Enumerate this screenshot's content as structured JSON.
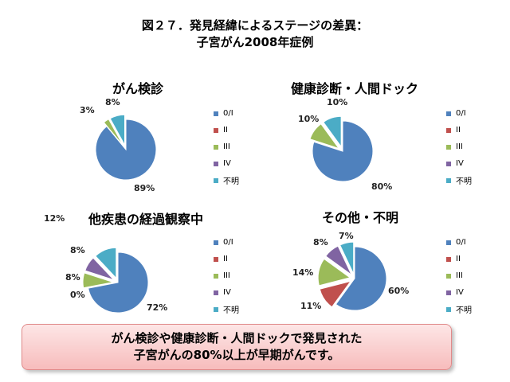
{
  "title": {
    "line1": "図２７．発見経緯によるステージの差異：",
    "line2": "子宮がん2008年症例"
  },
  "legend_labels": [
    "0/I",
    "II",
    "III",
    "IV",
    "不明"
  ],
  "colors": [
    "#4F81BD",
    "#C0504D",
    "#9BBB59",
    "#8064A2",
    "#4BACC6"
  ],
  "chart_data": [
    {
      "type": "pie",
      "title": "がん検診",
      "categories": [
        "0/I",
        "II",
        "III",
        "IV",
        "不明"
      ],
      "values": [
        89,
        0,
        3,
        0,
        8
      ],
      "value_labels": [
        "89%",
        "",
        "3%",
        "",
        "8%"
      ]
    },
    {
      "type": "pie",
      "title": "健康診断・人間ドック",
      "categories": [
        "0/I",
        "II",
        "III",
        "IV",
        "不明"
      ],
      "values": [
        80,
        0,
        10,
        0,
        10
      ],
      "value_labels": [
        "80%",
        "",
        "10%",
        "",
        "10%"
      ]
    },
    {
      "type": "pie",
      "title": "他疾患の経過観察中",
      "categories": [
        "0/I",
        "II",
        "III",
        "IV",
        "不明"
      ],
      "values": [
        72,
        0,
        8,
        8,
        12
      ],
      "value_labels": [
        "72%",
        "0%",
        "8%",
        "8%",
        "12%"
      ]
    },
    {
      "type": "pie",
      "title": "その他・不明",
      "categories": [
        "0/I",
        "II",
        "III",
        "IV",
        "不明"
      ],
      "values": [
        60,
        11,
        14,
        8,
        7
      ],
      "value_labels": [
        "60%",
        "11%",
        "14%",
        "8%",
        "7%"
      ]
    }
  ],
  "banner": {
    "line1": "がん検診や健康診断・人間ドックで発見された",
    "line2": "子宮がんの80%以上が早期がんです。"
  }
}
